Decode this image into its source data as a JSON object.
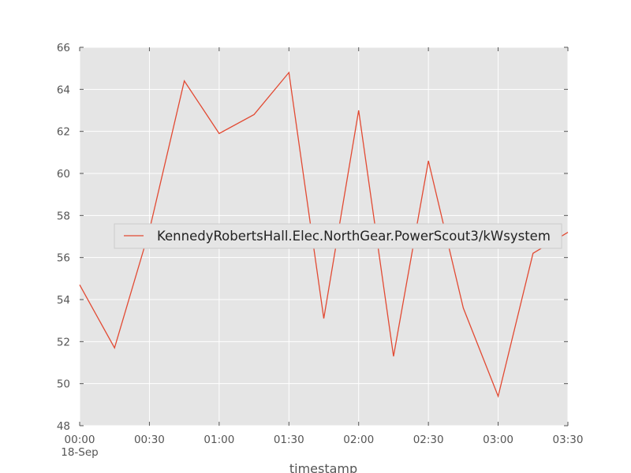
{
  "chart_data": {
    "type": "line",
    "title": "",
    "xlabel": "timestamp",
    "ylabel": "",
    "x_unit": "minutes",
    "xlim": [
      0,
      210
    ],
    "ylim": [
      48,
      66
    ],
    "x": [
      0,
      15,
      30,
      45,
      60,
      75,
      90,
      105,
      120,
      135,
      150,
      165,
      180,
      195,
      210
    ],
    "series": [
      {
        "name": "KennedyRobertsHall.Elec.NorthGear.PowerScout3/kWsystem",
        "color": "#e24a33",
        "values": [
          54.7,
          51.7,
          57.3,
          64.4,
          61.9,
          62.8,
          64.8,
          53.1,
          63.0,
          51.3,
          60.6,
          53.6,
          49.4,
          56.2,
          57.2
        ]
      }
    ],
    "x_ticks": [
      {
        "value": 0,
        "label": "00:00"
      },
      {
        "value": 30,
        "label": "00:30"
      },
      {
        "value": 60,
        "label": "01:00"
      },
      {
        "value": 90,
        "label": "01:30"
      },
      {
        "value": 120,
        "label": "02:00"
      },
      {
        "value": 150,
        "label": "02:30"
      },
      {
        "value": 180,
        "label": "03:00"
      },
      {
        "value": 210,
        "label": "03:30"
      }
    ],
    "x_date_label": "18-Sep",
    "y_ticks": [
      48,
      50,
      52,
      54,
      56,
      58,
      60,
      62,
      64,
      66
    ],
    "grid": true,
    "legend_position": "center-right",
    "background_color": "#e5e5e5",
    "grid_color": "#ffffff"
  }
}
